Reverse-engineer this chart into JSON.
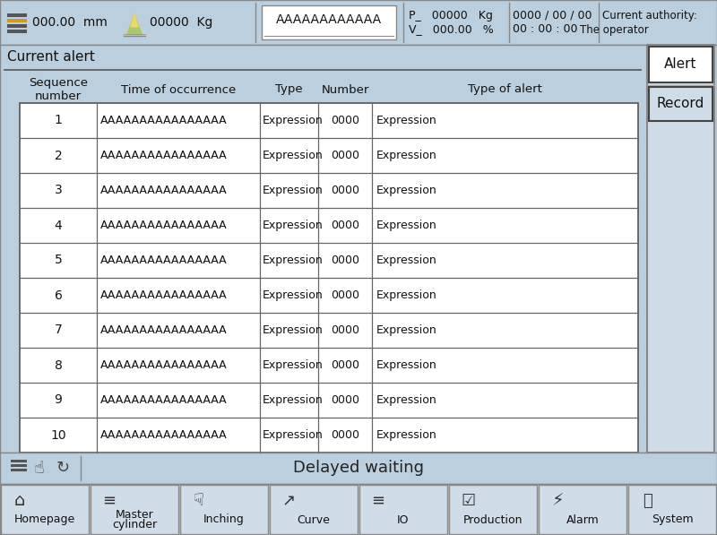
{
  "bg_color": "#bccfde",
  "white": "#ffffff",
  "button_bg": "#d0dce8",
  "gray_border": "#888888",
  "dark_border": "#444444",
  "header_text": "000.00  mm",
  "header_kg": "00000  Kg",
  "header_program": "AAAAAAAAAAAA",
  "header_p_line1": "P_   00000   Kg",
  "header_p_line2": "V_   000.00   %",
  "header_date": "0000 / 00 / 00",
  "header_time": "00 : 00 : 00",
  "header_authority1": "Current authority:",
  "header_authority2": "The operator",
  "alert_title": "Current alert",
  "btn_alert": "Alert",
  "btn_record": "Record",
  "col_headers": [
    "Sequence\nnumber",
    "Time of occurrence",
    "Type",
    "Number",
    "Type of alert"
  ],
  "table_rows": 10,
  "row_seq": [
    "1",
    "2",
    "3",
    "4",
    "5",
    "6",
    "7",
    "8",
    "9",
    "10"
  ],
  "row_time": "AAAAAAAAAAAAAAAA",
  "row_type": "Expression",
  "row_number": "0000",
  "row_alert": "Expression",
  "status_text": "Delayed waiting",
  "nav_items": [
    "Homepage",
    "Master\ncylinder",
    "Inching",
    "Curve",
    "IO",
    "Production",
    "Alarm",
    "System"
  ]
}
